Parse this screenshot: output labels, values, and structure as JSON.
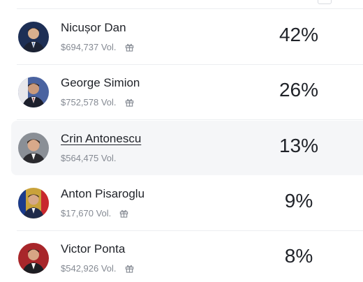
{
  "candidates": [
    {
      "name": "Nicușor Dan",
      "volume": "$694,737 Vol.",
      "percent": "42%",
      "avatar_icon": "candidate-photo",
      "avatar_bg": "#1d2f55"
    },
    {
      "name": "George Simion",
      "volume": "$752,578 Vol.",
      "percent": "26%",
      "avatar_icon": "candidate-photo",
      "avatar_bg": "#4a63a0"
    },
    {
      "name": "Crin Antonescu",
      "volume": "$564,475 Vol.",
      "percent": "13%",
      "avatar_icon": "candidate-photo",
      "avatar_bg": "#8a8f96"
    },
    {
      "name": "Anton Pisaroglu",
      "volume": "$17,670 Vol.",
      "percent": "9%",
      "avatar_icon": "candidate-photo",
      "avatar_bg": "#c9a23a"
    },
    {
      "name": "Victor Ponta",
      "volume": "$542,926 Vol.",
      "percent": "8%",
      "avatar_icon": "candidate-photo",
      "avatar_bg": "#a8262a"
    }
  ],
  "colors": {
    "text": "#1f2228",
    "muted": "#858a93",
    "hover_bg": "#f5f6f8",
    "divider": "#eceef1"
  },
  "icons": {
    "reward": "gift-icon"
  }
}
